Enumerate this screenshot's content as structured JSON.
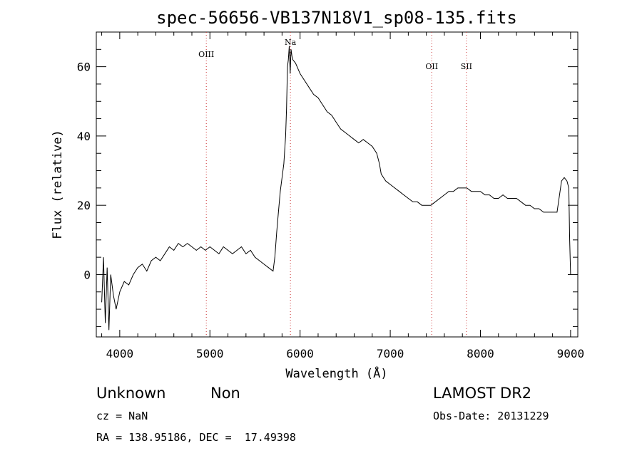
{
  "chart_data": {
    "type": "line",
    "title": "spec-56656-VB137N18V1_sp08-135.fits",
    "xlabel": "Wavelength (Å)",
    "ylabel": "Flux (relative)",
    "xlim": [
      3740,
      9080
    ],
    "ylim": [
      -18,
      70
    ],
    "xticks": [
      4000,
      5000,
      6000,
      7000,
      8000,
      9000
    ],
    "yticks": [
      0,
      20,
      40,
      60
    ],
    "grid": false,
    "line_color": "#000000",
    "series": [
      {
        "x": [
          3800,
          3820,
          3840,
          3860,
          3880,
          3900,
          3930,
          3960,
          4000,
          4050,
          4100,
          4150,
          4200,
          4250,
          4300,
          4350,
          4400,
          4450,
          4500,
          4550,
          4600,
          4650,
          4700,
          4750,
          4800,
          4850,
          4900,
          4950,
          5000,
          5050,
          5100,
          5150,
          5200,
          5250,
          5300,
          5350,
          5400,
          5450,
          5500,
          5550,
          5600,
          5650,
          5700,
          5720,
          5740,
          5760,
          5780,
          5800,
          5820,
          5840,
          5850,
          5860,
          5870,
          5880,
          5890,
          5900,
          5910,
          5920,
          5950,
          6000,
          6050,
          6100,
          6150,
          6200,
          6250,
          6300,
          6350,
          6400,
          6450,
          6500,
          6550,
          6600,
          6650,
          6700,
          6750,
          6800,
          6850,
          6880,
          6900,
          6950,
          7000,
          7050,
          7100,
          7150,
          7200,
          7250,
          7300,
          7350,
          7400,
          7450,
          7500,
          7550,
          7600,
          7650,
          7700,
          7750,
          7800,
          7850,
          7900,
          7950,
          8000,
          8050,
          8100,
          8150,
          8200,
          8250,
          8300,
          8350,
          8400,
          8450,
          8500,
          8550,
          8600,
          8650,
          8700,
          8750,
          8800,
          8850,
          8900,
          8930,
          8960,
          8980,
          8990,
          9000
        ],
        "y": [
          -8,
          5,
          -14,
          2,
          -16,
          0,
          -6,
          -10,
          -5,
          -2,
          -3,
          0,
          2,
          3,
          1,
          4,
          5,
          4,
          6,
          8,
          7,
          9,
          8,
          9,
          8,
          7,
          8,
          7,
          8,
          7,
          6,
          8,
          7,
          6,
          7,
          8,
          6,
          7,
          5,
          4,
          3,
          2,
          1,
          5,
          12,
          18,
          24,
          28,
          32,
          40,
          48,
          60,
          62,
          66,
          58,
          65,
          63,
          62,
          61,
          58,
          56,
          54,
          52,
          51,
          49,
          47,
          46,
          44,
          42,
          41,
          40,
          39,
          38,
          39,
          38,
          37,
          35,
          32,
          29,
          27,
          26,
          25,
          24,
          23,
          22,
          21,
          21,
          20,
          20,
          20,
          21,
          22,
          23,
          24,
          24,
          25,
          25,
          25,
          24,
          24,
          24,
          23,
          23,
          22,
          22,
          23,
          22,
          22,
          22,
          21,
          20,
          20,
          19,
          19,
          18,
          18,
          18,
          18,
          27,
          28,
          27,
          25,
          10,
          0
        ]
      }
    ],
    "lines": [
      {
        "label": "OIII",
        "x": 4960
      },
      {
        "label": "Na",
        "x": 5893
      },
      {
        "label": "OII",
        "x": 7460
      },
      {
        "label": "SII",
        "x": 7845
      }
    ],
    "line_marker_color": "#cc3333"
  },
  "info": {
    "class_label": "Unknown",
    "subclass_label": "Non",
    "survey_label": "LAMOST DR2",
    "cz_text": "cz = NaN",
    "obs_date_text": "Obs-Date: 20131229",
    "coords_text": "RA = 138.95186, DEC =  17.49398"
  }
}
